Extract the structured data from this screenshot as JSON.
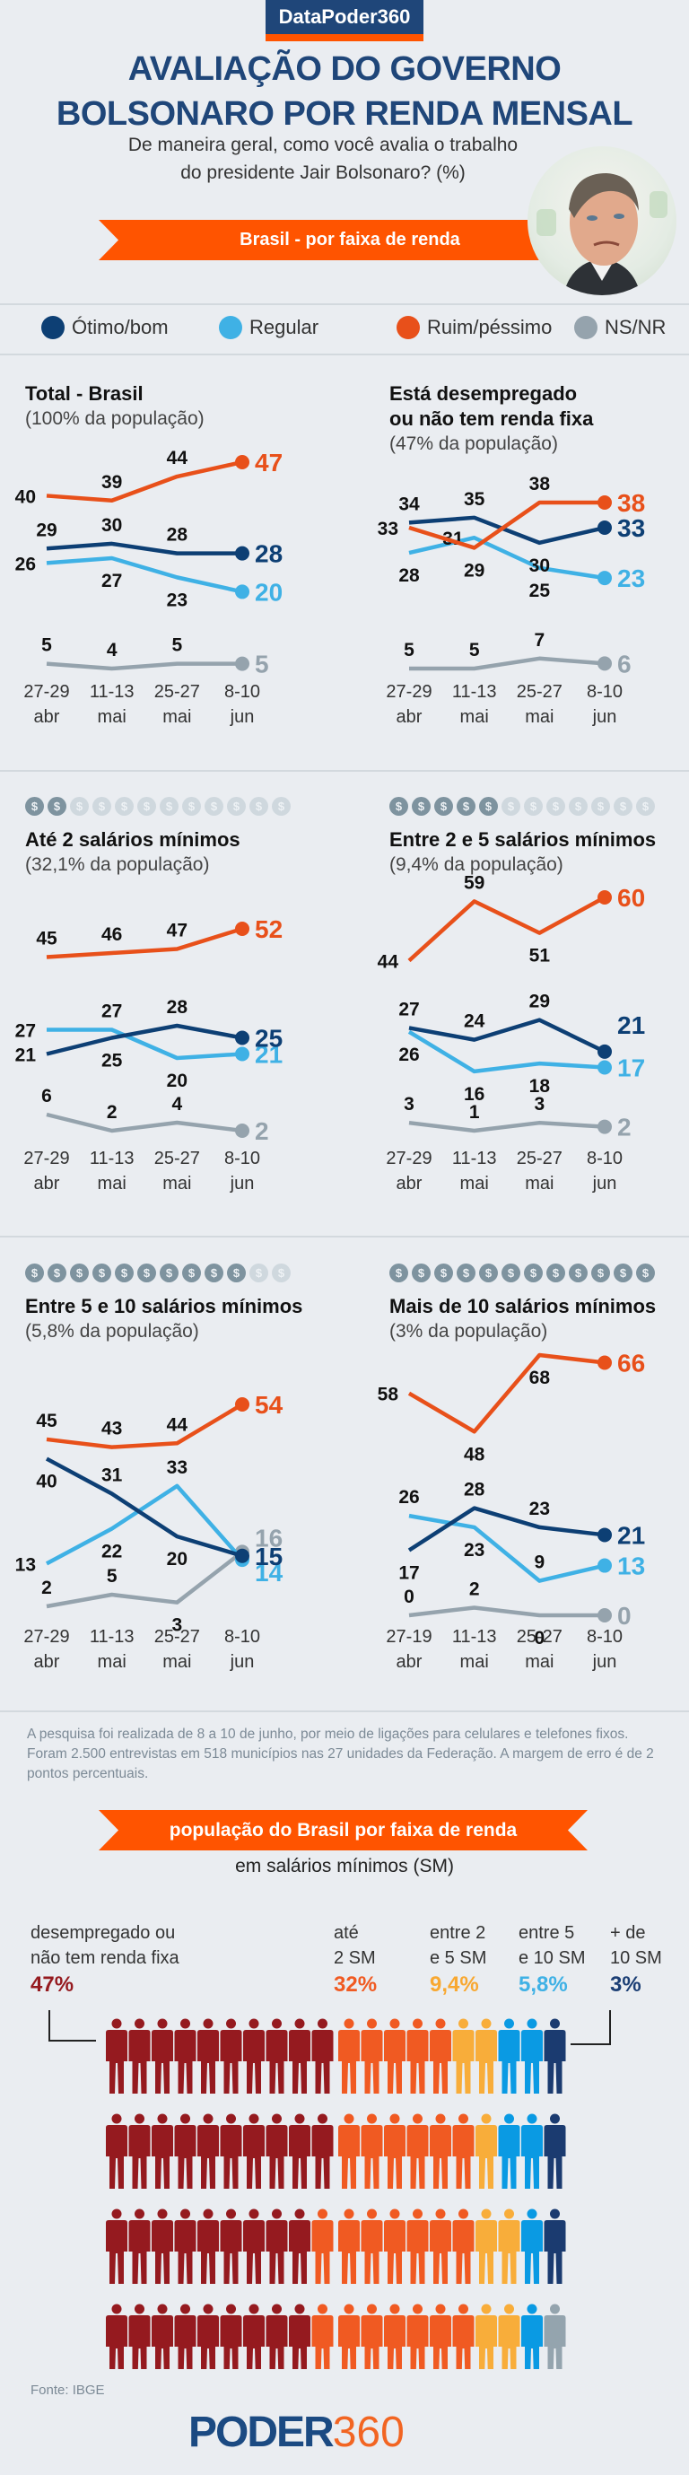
{
  "header": {
    "brand": "DataPoder360",
    "title_line1": "AVALIAÇÃO DO GOVERNO",
    "title_line2": "BOLSONARO POR RENDA MENSAL",
    "subtitle_line1": "De maneira geral, como você avalia o trabalho",
    "subtitle_line2": "do presidente Jair Bolsonaro? (%)",
    "banner": "Brasil - por faixa de renda",
    "portrait_alt": "Jair Bolsonaro"
  },
  "colors": {
    "otimo": "#0d3f74",
    "regular": "#3fb1e5",
    "ruim": "#e8501a",
    "nsnr": "#95a3ad",
    "coin_on": "#7e939f",
    "coin_off": "#cfd8de",
    "orange_banner": "#ff5400"
  },
  "legend": [
    {
      "key": "otimo",
      "label": "Ótimo/bom"
    },
    {
      "key": "regular",
      "label": "Regular"
    },
    {
      "key": "ruim",
      "label": "Ruim/péssimo"
    },
    {
      "key": "nsnr",
      "label": "NS/NR"
    }
  ],
  "chart_data": [
    {
      "type": "line",
      "title": "Total - Brasil",
      "subtitle": "(100% da população)",
      "coins_filled": null,
      "x": [
        [
          "27-29",
          "abr"
        ],
        [
          "11-13",
          "mai"
        ],
        [
          "25-27",
          "mai"
        ],
        [
          "8-10",
          "jun"
        ]
      ],
      "series": [
        {
          "name": "Ruim/péssimo",
          "key": "ruim",
          "values": [
            40,
            39,
            44,
            47
          ]
        },
        {
          "name": "Ótimo/bom",
          "key": "otimo",
          "values": [
            29,
            30,
            28,
            28
          ]
        },
        {
          "name": "Regular",
          "key": "regular",
          "values": [
            26,
            27,
            23,
            20
          ]
        },
        {
          "name": "NS/NR",
          "key": "nsnr",
          "values": [
            5,
            4,
            5,
            5
          ]
        }
      ]
    },
    {
      "type": "line",
      "title": "Está desempregado ou não tem renda fixa",
      "title_line1": "Está desempregado",
      "title_line2": "ou não tem renda fixa",
      "subtitle": "(47% da população)",
      "coins_filled": null,
      "x": [
        [
          "27-29",
          "abr"
        ],
        [
          "11-13",
          "mai"
        ],
        [
          "25-27",
          "mai"
        ],
        [
          "8-10",
          "jun"
        ]
      ],
      "series": [
        {
          "name": "Ruim/péssimo",
          "key": "ruim",
          "values": [
            33,
            29,
            38,
            38
          ]
        },
        {
          "name": "Ótimo/bom",
          "key": "otimo",
          "values": [
            34,
            35,
            30,
            33
          ]
        },
        {
          "name": "Regular",
          "key": "regular",
          "values": [
            28,
            31,
            25,
            23
          ]
        },
        {
          "name": "NS/NR",
          "key": "nsnr",
          "values": [
            5,
            5,
            7,
            6
          ]
        }
      ]
    },
    {
      "type": "line",
      "title": "Até 2 salários mínimos",
      "subtitle": "(32,1% da população)",
      "coins_filled": 2,
      "x": [
        [
          "27-29",
          "abr"
        ],
        [
          "11-13",
          "mai"
        ],
        [
          "25-27",
          "mai"
        ],
        [
          "8-10",
          "jun"
        ]
      ],
      "series": [
        {
          "name": "Ruim/péssimo",
          "key": "ruim",
          "values": [
            45,
            46,
            47,
            52
          ]
        },
        {
          "name": "Ótimo/bom",
          "key": "otimo",
          "values": [
            21,
            25,
            28,
            25
          ]
        },
        {
          "name": "Regular",
          "key": "regular",
          "values": [
            27,
            27,
            20,
            21
          ]
        },
        {
          "name": "NS/NR",
          "key": "nsnr",
          "values": [
            6,
            2,
            4,
            2
          ]
        }
      ]
    },
    {
      "type": "line",
      "title": "Entre 2 e 5 salários mínimos",
      "subtitle": "(9,4% da população)",
      "coins_filled": 5,
      "x": [
        [
          "27-29",
          "abr"
        ],
        [
          "11-13",
          "mai"
        ],
        [
          "25-27",
          "mai"
        ],
        [
          "8-10",
          "jun"
        ]
      ],
      "series": [
        {
          "name": "Ruim/péssimo",
          "key": "ruim",
          "values": [
            44,
            59,
            51,
            60
          ]
        },
        {
          "name": "Ótimo/bom",
          "key": "otimo",
          "values": [
            27,
            24,
            29,
            21
          ]
        },
        {
          "name": "Regular",
          "key": "regular",
          "values": [
            26,
            16,
            18,
            17
          ]
        },
        {
          "name": "NS/NR",
          "key": "nsnr",
          "values": [
            3,
            1,
            3,
            2
          ]
        }
      ]
    },
    {
      "type": "line",
      "title": "Entre 5 e 10 salários mínimos",
      "subtitle": "(5,8% da população)",
      "coins_filled": 10,
      "x": [
        [
          "27-29",
          "abr"
        ],
        [
          "11-13",
          "mai"
        ],
        [
          "25-27",
          "mai"
        ],
        [
          "8-10",
          "jun"
        ]
      ],
      "series": [
        {
          "name": "Ruim/péssimo",
          "key": "ruim",
          "values": [
            45,
            43,
            44,
            54
          ]
        },
        {
          "name": "Ótimo/bom",
          "key": "otimo",
          "values": [
            40,
            31,
            20,
            15
          ]
        },
        {
          "name": "Regular",
          "key": "regular",
          "values": [
            13,
            22,
            33,
            14
          ]
        },
        {
          "name": "NS/NR",
          "key": "nsnr",
          "values": [
            2,
            5,
            3,
            16
          ]
        }
      ]
    },
    {
      "type": "line",
      "title": "Mais de 10 salários mínimos",
      "subtitle": "(3% da população)",
      "coins_filled": 12,
      "x": [
        [
          "27-19",
          "abr"
        ],
        [
          "11-13",
          "mai"
        ],
        [
          "25-27",
          "mai"
        ],
        [
          "8-10",
          "jun"
        ]
      ],
      "series": [
        {
          "name": "Ruim/péssimo",
          "key": "ruim",
          "values": [
            58,
            48,
            68,
            66
          ]
        },
        {
          "name": "Ótimo/bom",
          "key": "otimo",
          "values": [
            17,
            28,
            23,
            21
          ]
        },
        {
          "name": "Regular",
          "key": "regular",
          "values": [
            26,
            23,
            9,
            13
          ]
        },
        {
          "name": "NS/NR",
          "key": "nsnr",
          "values": [
            0,
            2,
            0,
            0
          ]
        }
      ]
    }
  ],
  "coins": {
    "total": 12,
    "glyph": "$"
  },
  "note": "A pesquisa foi realizada de 8 a 10 de junho, por meio de ligações para celulares e telefones fixos. Foram 2.500 entrevistas em 518 municípios nas 27 unidades da Federação. A margem de erro é de 2 pontos percentuais.",
  "population": {
    "banner": "população do Brasil por faixa de renda",
    "subtitle": "em salários mínimos (SM)",
    "groups": [
      {
        "label_line1": "desempregado ou",
        "label_line2": "não tem renda fixa",
        "pct": "47%",
        "color": "#951a1f"
      },
      {
        "label_line1": "até",
        "label_line2": "2 SM",
        "pct": "32%",
        "color": "#f05a22"
      },
      {
        "label_line1": "entre 2",
        "label_line2": "e 5 SM",
        "pct": "9,4%",
        "color": "#f8a831"
      },
      {
        "label_line1": "entre 5",
        "label_line2": "e 10 SM",
        "pct": "5,8%",
        "color": "#3fb1e5"
      },
      {
        "label_line1": "+ de",
        "label_line2": "10 SM",
        "pct": "3%",
        "color": "#1b3e74"
      }
    ],
    "pictogram_colors": {
      "red": "#951a1f",
      "orange": "#f05a22",
      "yellow": "#f8ad3a",
      "blue": "#0a9ae3",
      "navy": "#1b3b70",
      "gray": "#94a4ae"
    },
    "pictogram_rows": [
      {
        "red": 10,
        "orange": 5,
        "yellow": 2,
        "blue": 2,
        "navy": 1,
        "gray": 0
      },
      {
        "red": 10,
        "orange": 6,
        "yellow": 1,
        "blue": 2,
        "navy": 1,
        "gray": 0
      },
      {
        "red": 9,
        "orange": 7,
        "yellow": 2,
        "blue": 1,
        "navy": 1,
        "gray": 0
      },
      {
        "red": 9,
        "orange": 7,
        "yellow": 2,
        "blue": 1,
        "navy": 0,
        "gray": 1
      },
      {
        "red": 9,
        "orange": 7,
        "yellow": 2,
        "blue": 0,
        "navy": 0,
        "gray": 2
      }
    ],
    "source": "Fonte: IBGE"
  },
  "footer": {
    "logo_part1": "PODER",
    "logo_part2": "360"
  }
}
